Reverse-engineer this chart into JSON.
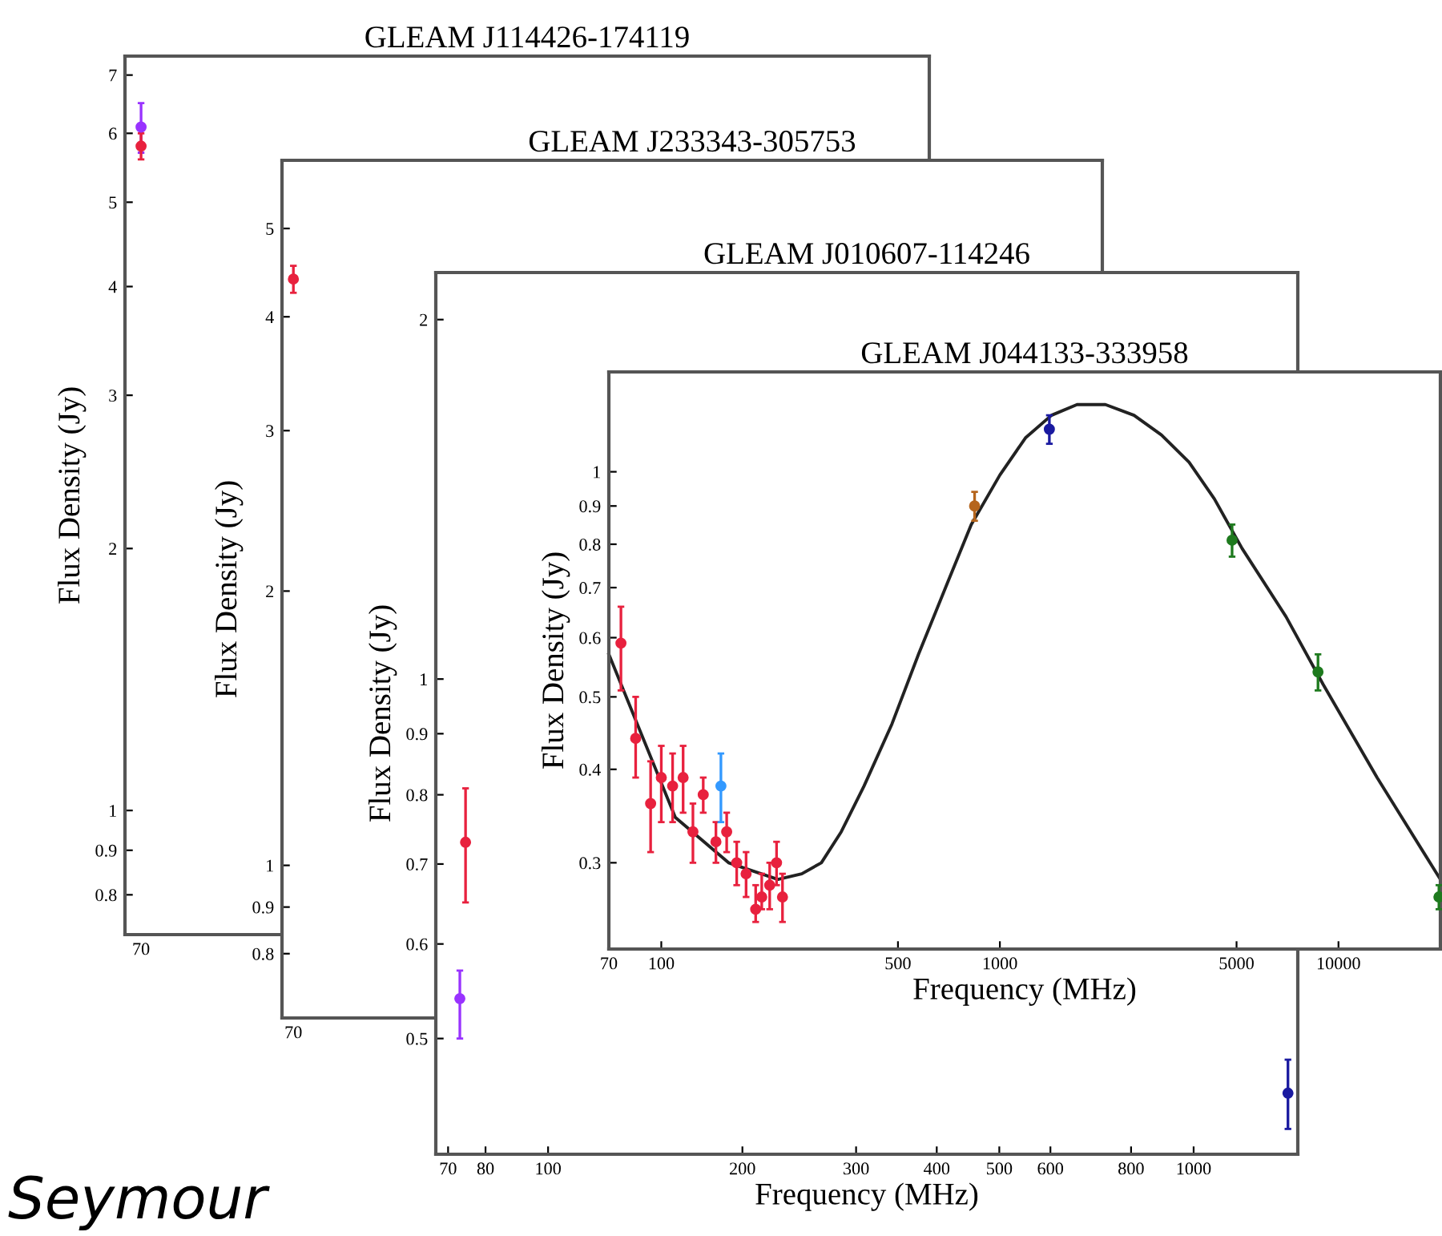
{
  "chart_data": [
    {
      "type": "scatter",
      "title": "GLEAM J114426-174119",
      "ylabel": "Flux Density (Jy)",
      "log": "y",
      "categories": [
        "70",
        null,
        null,
        null,
        null,
        null,
        null,
        null,
        null,
        null,
        null,
        null,
        null,
        null,
        null,
        null,
        null,
        null,
        null,
        null,
        null,
        null,
        null,
        null,
        null
      ],
      "ylim": [
        0.72,
        7.36
      ],
      "yticks": [
        0.8,
        0.9,
        1,
        2,
        3,
        4,
        5,
        6,
        7
      ],
      "grid": false,
      "marker": "circle",
      "annotations": [
        "Seymour"
      ],
      "series": [
        {
          "color": "#9933ff",
          "values": [
            6.1,
            null,
            null,
            null,
            null,
            null,
            null,
            null,
            null,
            null,
            null,
            null,
            null,
            null,
            null,
            null,
            null,
            null,
            null,
            null,
            null,
            null,
            null,
            null,
            null
          ],
          "errors": [
            [
              5.7,
              6.5
            ],
            null,
            null,
            null,
            null,
            null,
            null,
            null,
            null,
            null,
            null,
            null,
            null,
            null,
            null,
            null,
            null,
            null,
            null,
            null,
            null,
            null,
            null,
            null,
            null
          ]
        },
        {
          "color": "#e8213e",
          "values": [
            5.8,
            null,
            null,
            null,
            null,
            null,
            null,
            null,
            null,
            null,
            null,
            null,
            null,
            null,
            null,
            null,
            null,
            null,
            null,
            null,
            null,
            null,
            null,
            null,
            null
          ],
          "errors": [
            [
              5.6,
              6.0
            ],
            null,
            null,
            null,
            null,
            null,
            null,
            null,
            null,
            null,
            null,
            null,
            null,
            null,
            null,
            null,
            null,
            null,
            null,
            null,
            null,
            null,
            null,
            null,
            null
          ]
        }
      ]
    },
    {
      "type": "scatter",
      "title": "GLEAM J233343-305753",
      "ylabel": "Flux Density (Jy)",
      "log": "y",
      "categories": [
        "70",
        null,
        null,
        null,
        null,
        null,
        null,
        null,
        null,
        null,
        null,
        null,
        null,
        null,
        null,
        null,
        null,
        null,
        null,
        null,
        null,
        null,
        null,
        null,
        null,
        null,
        null,
        null,
        null,
        null,
        null,
        null,
        null,
        null,
        null,
        null
      ],
      "ylim": [
        0.68,
        5.94
      ],
      "yticks": [
        0.8,
        0.9,
        1,
        2,
        3,
        4,
        5
      ],
      "grid": false,
      "marker": "circle",
      "series": [
        {
          "color": "#e8213e",
          "values": [
            4.4,
            null,
            null,
            null,
            null,
            null,
            null,
            null,
            null,
            null,
            null,
            null,
            null,
            null,
            null,
            null,
            null,
            null,
            null,
            null,
            null,
            null,
            null,
            null,
            null,
            null,
            null,
            null,
            null,
            null,
            null,
            null,
            null,
            null,
            null,
            null
          ],
          "errors": [
            [
              4.25,
              4.55
            ],
            null,
            null,
            null,
            null,
            null,
            null,
            null,
            null,
            null,
            null,
            null,
            null,
            null,
            null,
            null,
            null,
            null,
            null,
            null,
            null,
            null,
            null,
            null,
            null,
            null,
            null,
            null,
            null,
            null,
            null,
            null,
            null,
            null,
            null,
            null
          ]
        }
      ]
    },
    {
      "type": "scatter",
      "title": "GLEAM J010607-114246",
      "xlabel": "Frequency (MHz)",
      "ylabel": "Flux Density (Jy)",
      "log": "xy",
      "xlim": [
        67,
        1450
      ],
      "ylim": [
        0.4,
        2.19
      ],
      "xticks": [
        70,
        80,
        100,
        200,
        300,
        400,
        500,
        600,
        800,
        1000
      ],
      "yticks": [
        0.5,
        0.6,
        0.7,
        0.8,
        0.9,
        1,
        2
      ],
      "grid": false,
      "marker": "circle",
      "series": [
        {
          "color": "#e8213e",
          "x": [
            74.5
          ],
          "values": [
            0.73
          ],
          "errors": [
            [
              0.65,
              0.81
            ]
          ]
        },
        {
          "color": "#9933ff",
          "x": [
            73
          ],
          "values": [
            0.54
          ],
          "errors": [
            [
              0.5,
              0.57
            ]
          ]
        },
        {
          "color": "#1a1aa0",
          "x": [
            1400
          ],
          "values": [
            0.45
          ],
          "errors": [
            [
              0.42,
              0.48
            ]
          ]
        }
      ]
    },
    {
      "type": "scatter",
      "title": "GLEAM J044133-333958",
      "xlabel": "Frequency (MHz)",
      "ylabel": "Flux Density (Jy)",
      "log": "xy",
      "xlim": [
        70,
        20000
      ],
      "ylim": [
        0.23,
        1.36
      ],
      "xticks": [
        70,
        100,
        500,
        1000,
        5000,
        10000
      ],
      "yticks": [
        0.3,
        0.4,
        0.5,
        0.6,
        0.7,
        0.8,
        0.9,
        1
      ],
      "grid": false,
      "marker": "circle",
      "series": [
        {
          "type": "line",
          "color": "#222222",
          "marker": "none",
          "x": [
            70,
            110,
            158,
            221,
            260,
            297,
            340,
            397,
            480,
            575,
            700,
            823,
            1000,
            1190,
            1420,
            1690,
            2050,
            2490,
            3000,
            3620,
            4300,
            5190,
            7000,
            9000,
            13000,
            20000
          ],
          "values": [
            0.57,
            0.345,
            0.3,
            0.285,
            0.29,
            0.3,
            0.33,
            0.38,
            0.46,
            0.57,
            0.71,
            0.85,
            0.99,
            1.11,
            1.19,
            1.23,
            1.23,
            1.19,
            1.12,
            1.03,
            0.92,
            0.79,
            0.64,
            0.52,
            0.39,
            0.285
          ]
        },
        {
          "color": "#e8213e",
          "x": [
            76,
            84,
            93,
            100,
            108,
            116,
            124,
            133,
            145,
            156,
            167,
            178,
            190,
            198,
            209,
            219,
            228
          ],
          "values": [
            0.59,
            0.44,
            0.36,
            0.39,
            0.38,
            0.39,
            0.33,
            0.37,
            0.32,
            0.33,
            0.3,
            0.29,
            0.26,
            0.27,
            0.28,
            0.3,
            0.27
          ],
          "errors": [
            [
              0.51,
              0.66
            ],
            [
              0.39,
              0.5
            ],
            [
              0.31,
              0.41
            ],
            [
              0.34,
              0.43
            ],
            [
              0.34,
              0.42
            ],
            [
              0.35,
              0.43
            ],
            [
              0.3,
              0.36
            ],
            [
              0.35,
              0.39
            ],
            [
              0.3,
              0.34
            ],
            [
              0.31,
              0.35
            ],
            [
              0.28,
              0.32
            ],
            [
              0.27,
              0.31
            ],
            [
              0.25,
              0.28
            ],
            [
              0.26,
              0.29
            ],
            [
              0.26,
              0.3
            ],
            [
              0.28,
              0.32
            ],
            [
              0.25,
              0.29
            ]
          ]
        },
        {
          "color": "#3399ff",
          "x": [
            150
          ],
          "values": [
            0.38
          ],
          "errors": [
            [
              0.34,
              0.42
            ]
          ]
        },
        {
          "color": "#b5651d",
          "x": [
            842
          ],
          "values": [
            0.9
          ],
          "errors": [
            [
              0.86,
              0.94
            ]
          ]
        },
        {
          "color": "#1a1aa0",
          "x": [
            1400
          ],
          "values": [
            1.14
          ],
          "errors": [
            [
              1.09,
              1.19
            ]
          ]
        },
        {
          "color": "#1e7a1e",
          "x": [
            4850,
            8700,
            19800
          ],
          "values": [
            0.81,
            0.54,
            0.27
          ],
          "errors": [
            [
              0.77,
              0.85
            ],
            [
              0.51,
              0.57
            ],
            [
              0.26,
              0.28
            ]
          ]
        }
      ]
    }
  ]
}
